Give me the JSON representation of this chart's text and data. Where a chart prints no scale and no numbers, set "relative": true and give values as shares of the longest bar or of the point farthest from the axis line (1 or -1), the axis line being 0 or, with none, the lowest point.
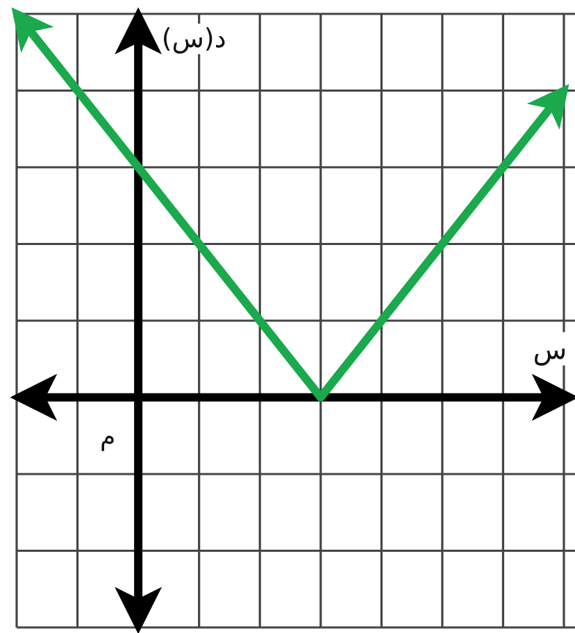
{
  "chart_data": {
    "type": "line",
    "relative": true,
    "categories": [
      null,
      null,
      null,
      null,
      null,
      null,
      null,
      null,
      null,
      null
    ],
    "values": [
      1,
      0.8,
      0.6,
      0.4,
      0.2,
      0,
      0.2,
      0.4,
      0.6,
      0.8
    ],
    "color": "#1aa94d",
    "xlabel": "س",
    "ylabel": "د(س)",
    "annotations": [
      "م"
    ],
    "grid": true
  }
}
